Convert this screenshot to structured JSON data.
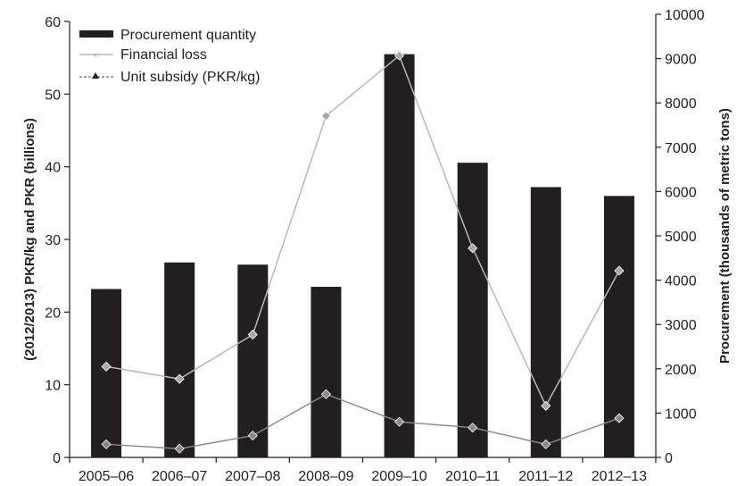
{
  "chart_data": {
    "type": "bar",
    "categories": [
      "2005–06",
      "2006–07",
      "2007–08",
      "2008–09",
      "2009–10",
      "2010–11",
      "2011–12",
      "2012–13"
    ],
    "series": [
      {
        "name": "Procurement quantity",
        "type": "bar",
        "axis": "right",
        "values": [
          3800,
          4400,
          4350,
          3850,
          9100,
          6650,
          6100,
          5900
        ],
        "color": "#231f20"
      },
      {
        "name": "Financial loss",
        "type": "line",
        "axis": "left",
        "values": [
          12.5,
          10.8,
          16.9,
          47,
          55.3,
          28.8,
          7.1,
          25.7
        ],
        "color": "#b8b8b8",
        "marker": "diamond"
      },
      {
        "name": "Unit subsidy (PKR/kg)",
        "type": "line",
        "axis": "left",
        "values": [
          1.8,
          1.2,
          3.0,
          8.7,
          4.9,
          4.1,
          1.8,
          5.4
        ],
        "color": "#8a8a8a",
        "marker": "diamond"
      }
    ],
    "ylabel": "(2012/2013) PKR/kg and PKR (billions)",
    "ylim": [
      0,
      60
    ],
    "yticks": [
      "0",
      "10",
      "20",
      "30",
      "40",
      "50",
      "60"
    ],
    "y2label": "Procurement (thousands of metric tons)",
    "y2lim": [
      0,
      10000
    ],
    "y2ticks": [
      "0",
      "1000",
      "2000",
      "3000",
      "4000",
      "5000",
      "6000",
      "7000",
      "8000",
      "9000",
      "10000"
    ],
    "grid": false,
    "legend_position": "top-left"
  }
}
